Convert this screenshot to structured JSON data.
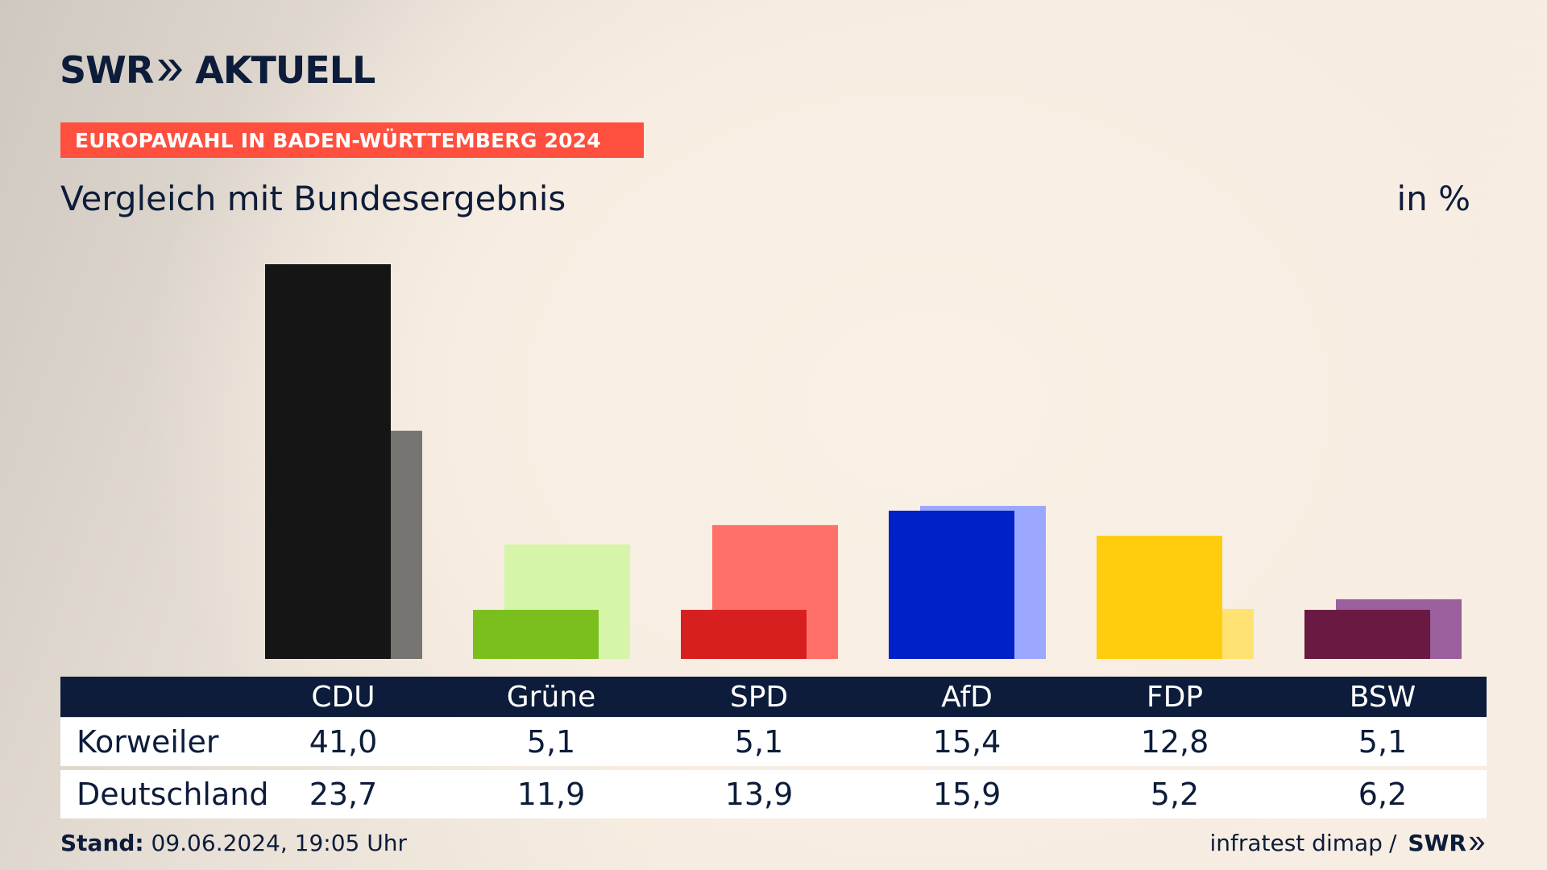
{
  "brand": {
    "logo_left": "SWR",
    "logo_right": "AKTUELL",
    "footer_logo": "SWR"
  },
  "headline": "EUROPAWAHL IN BADEN-WÜRTTEMBERG 2024",
  "subtitle": "Vergleich mit Bundesergebnis",
  "unit": "in %",
  "footer": {
    "stand_label": "Stand:",
    "stand_value": "09.06.2024, 19:05 Uhr",
    "source": "infratest dimap",
    "separator": "/"
  },
  "chart_data": {
    "type": "bar",
    "categories": [
      "CDU",
      "Grüne",
      "SPD",
      "AfD",
      "FDP",
      "BSW"
    ],
    "series": [
      {
        "name": "Korweiler",
        "values": [
          41.0,
          5.1,
          5.1,
          15.4,
          12.8,
          5.1
        ],
        "labels": [
          "41,0",
          "5,1",
          "5,1",
          "15,4",
          "12,8",
          "5,1"
        ]
      },
      {
        "name": "Deutschland",
        "values": [
          23.7,
          11.9,
          13.9,
          15.9,
          5.2,
          6.2
        ],
        "labels": [
          "23,7",
          "11,9",
          "13,9",
          "15,9",
          "5,2",
          "6,2"
        ]
      }
    ],
    "colors_primary": [
      "#151515",
      "#7abf1e",
      "#d81f1f",
      "#0021c8",
      "#ffcd0d",
      "#6a1942"
    ],
    "colors_secondary": [
      "#777572",
      "#d6f5a8",
      "#ff7068",
      "#9ca8ff",
      "#ffe271",
      "#9a5f9c"
    ],
    "ylim": [
      0,
      41
    ]
  }
}
